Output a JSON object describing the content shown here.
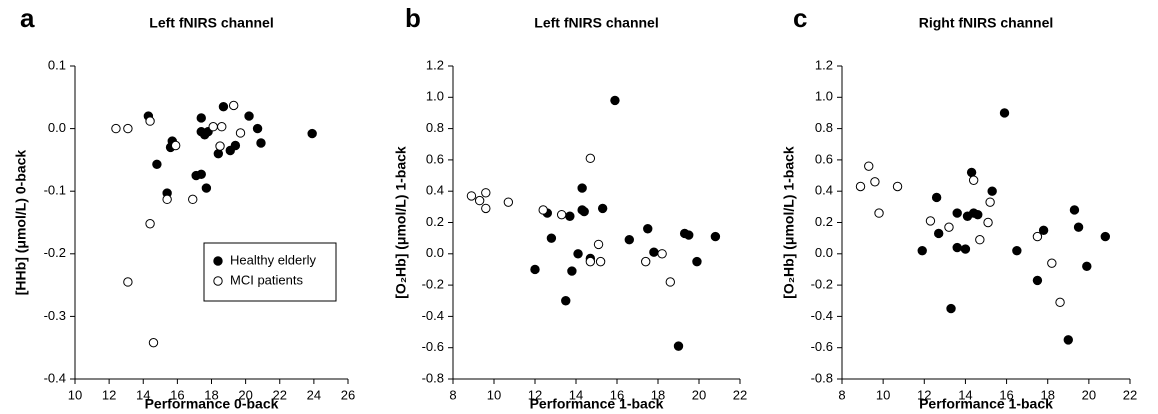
{
  "chart_data": [
    {
      "type": "scatter",
      "panel_label": "a",
      "title": "Left fNIRS channel",
      "x_label": "Performance 0-back",
      "y_label": "[HHb] (μmol/L) 0-back",
      "xlim": [
        10,
        26
      ],
      "xticks": [
        10,
        12,
        14,
        16,
        18,
        20,
        22,
        24,
        26
      ],
      "ylim": [
        -0.4,
        0.1
      ],
      "yticks": [
        0.1,
        {
          "value": 0,
          "label": "0.0"
        },
        -0.1,
        -0.2,
        -0.3,
        -0.4
      ],
      "legend": "lower right",
      "series": [
        {
          "name": "Healthy elderly",
          "color": "#000000",
          "fill": "#000000",
          "x": [
            14.3,
            14.8,
            15.4,
            15.6,
            15.7,
            17.1,
            17.4,
            17.4,
            17.4,
            17.6,
            17.7,
            17.8,
            18.4,
            18.7,
            19.1,
            19.4,
            20.2,
            20.7,
            20.9,
            23.9
          ],
          "values": [
            0.02,
            -0.057,
            -0.103,
            -0.03,
            -0.02,
            -0.075,
            -0.073,
            0.017,
            -0.005,
            -0.01,
            -0.095,
            -0.005,
            -0.04,
            0.035,
            -0.035,
            -0.027,
            0.02,
            0.0,
            -0.023,
            -0.008
          ]
        },
        {
          "name": "MCI patients",
          "color": "#000000",
          "fill": "#ffffff",
          "x": [
            12.4,
            13.1,
            13.1,
            14.4,
            14.4,
            14.6,
            15.4,
            15.9,
            16.9,
            18.1,
            18.5,
            18.6,
            19.3,
            19.7
          ],
          "values": [
            0.0,
            0.0,
            -0.245,
            0.012,
            -0.152,
            -0.342,
            -0.113,
            -0.027,
            -0.113,
            0.003,
            -0.028,
            0.003,
            0.037,
            -0.007
          ]
        }
      ]
    },
    {
      "type": "scatter",
      "panel_label": "b",
      "title": "Left fNIRS channel",
      "x_label": "Performance 1-back",
      "y_label": "[O₂Hb] (μmol/L) 1-back",
      "xlim": [
        8,
        22
      ],
      "xticks": [
        8,
        10,
        12,
        14,
        16,
        18,
        20,
        22
      ],
      "ylim": [
        -0.8,
        1.2
      ],
      "yticks": [
        1.2,
        {
          "value": 1,
          "label": "1.0"
        },
        0.8,
        0.6,
        0.4,
        0.2,
        {
          "value": 0,
          "label": "0.0"
        },
        -0.2,
        -0.4,
        -0.6,
        -0.8
      ],
      "series": [
        {
          "color": "#000000",
          "fill": "#000000",
          "x": [
            12.0,
            12.6,
            12.8,
            13.5,
            13.7,
            13.8,
            14.1,
            14.3,
            14.3,
            14.4,
            14.7,
            15.3,
            15.9,
            16.6,
            17.5,
            17.8,
            19.0,
            19.3,
            19.5,
            19.9,
            20.8
          ],
          "values": [
            -0.1,
            0.26,
            0.1,
            -0.3,
            0.24,
            -0.11,
            0.0,
            0.28,
            0.42,
            0.27,
            -0.03,
            0.29,
            0.98,
            0.09,
            0.16,
            0.01,
            -0.59,
            0.13,
            0.12,
            -0.05,
            0.11
          ]
        },
        {
          "color": "#000000",
          "fill": "#ffffff",
          "x": [
            8.9,
            9.3,
            9.6,
            9.6,
            10.7,
            12.4,
            13.3,
            14.7,
            14.7,
            15.1,
            15.2,
            17.4,
            18.2,
            18.6
          ],
          "values": [
            0.37,
            0.34,
            0.39,
            0.29,
            0.33,
            0.28,
            0.25,
            0.61,
            -0.05,
            0.06,
            -0.05,
            -0.05,
            0.0,
            -0.18
          ]
        }
      ]
    },
    {
      "type": "scatter",
      "panel_label": "c",
      "title": "Right fNIRS channel",
      "x_label": "Performance 1-back",
      "y_label": "[O₂Hb] (μmol/L) 1-back",
      "xlim": [
        8,
        22
      ],
      "xticks": [
        8,
        10,
        12,
        14,
        16,
        18,
        20,
        22
      ],
      "ylim": [
        -0.8,
        1.2
      ],
      "yticks": [
        1.2,
        {
          "value": 1,
          "label": "1.0"
        },
        0.8,
        0.6,
        0.4,
        0.2,
        {
          "value": 0,
          "label": "0.0"
        },
        -0.2,
        -0.4,
        -0.6,
        -0.8
      ],
      "series": [
        {
          "color": "#000000",
          "fill": "#000000",
          "x": [
            11.9,
            12.6,
            12.7,
            13.3,
            13.6,
            13.6,
            14.0,
            14.1,
            14.3,
            14.4,
            14.6,
            15.3,
            15.9,
            16.5,
            17.5,
            17.8,
            19.0,
            19.3,
            19.5,
            19.9,
            20.8
          ],
          "values": [
            0.02,
            0.36,
            0.13,
            -0.35,
            0.04,
            0.26,
            0.03,
            0.24,
            0.52,
            0.26,
            0.25,
            0.4,
            0.9,
            0.02,
            -0.17,
            0.15,
            -0.55,
            0.28,
            0.17,
            -0.08,
            0.11
          ]
        },
        {
          "color": "#000000",
          "fill": "#ffffff",
          "x": [
            8.9,
            9.3,
            9.6,
            9.8,
            10.7,
            12.3,
            13.2,
            14.4,
            14.7,
            15.1,
            15.2,
            17.5,
            18.2,
            18.6
          ],
          "values": [
            0.43,
            0.56,
            0.46,
            0.26,
            0.43,
            0.21,
            0.17,
            0.47,
            0.09,
            0.2,
            0.33,
            0.11,
            -0.06,
            -0.31
          ]
        }
      ]
    }
  ]
}
